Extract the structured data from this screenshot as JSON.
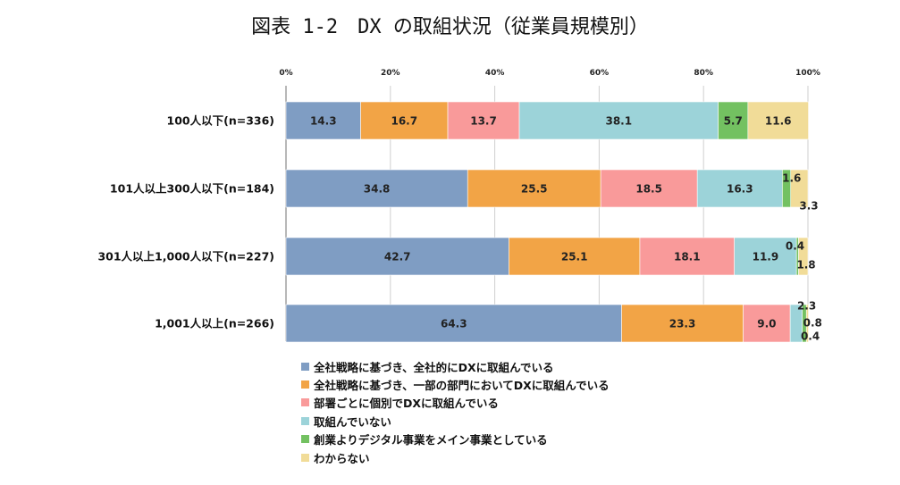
{
  "title": "図表 1-2　DX の取組状況（従業員規模別）",
  "chart_data": {
    "type": "bar",
    "orientation": "horizontal",
    "stacked": "percent",
    "x_ticks": [
      "0%",
      "20%",
      "40%",
      "60%",
      "80%",
      "100%"
    ],
    "xlim": [
      0,
      100
    ],
    "categories": [
      "100人以下(n=336)",
      "101人以上300人以下(n=184)",
      "301人以上1,000人以下(n=227)",
      "1,001人以上(n=266)"
    ],
    "series": [
      {
        "name": "全社戦略に基づき、全社的にDXに取組んでいる",
        "color": "#7f9dc3",
        "values": [
          14.3,
          34.8,
          42.7,
          64.3
        ],
        "labels": [
          "14.3",
          "34.8",
          "42.7",
          "64.3"
        ]
      },
      {
        "name": "全社戦略に基づき、一部の部門においてDXに取組んでいる",
        "color": "#f2a446",
        "values": [
          16.7,
          25.5,
          25.1,
          23.3
        ],
        "labels": [
          "16.7",
          "25.5",
          "25.1",
          "23.3"
        ]
      },
      {
        "name": "部署ごとに個別でDXに取組んでいる",
        "color": "#f99a9a",
        "values": [
          13.7,
          18.5,
          18.1,
          9.0
        ],
        "labels": [
          "13.7",
          "18.5",
          "18.1",
          "9.0"
        ]
      },
      {
        "name": "取組んでいない",
        "color": "#9cd3d9",
        "values": [
          38.1,
          16.3,
          11.9,
          2.3
        ],
        "labels": [
          "38.1",
          "16.3",
          "11.9",
          "2.3"
        ]
      },
      {
        "name": "創業よりデジタル事業をメイン事業としている",
        "color": "#73c161",
        "values": [
          5.7,
          1.6,
          0.4,
          0.8
        ],
        "labels": [
          "5.7",
          "1.6",
          "0.4",
          "0.8"
        ]
      },
      {
        "name": "わからない",
        "color": "#f1dc98",
        "values": [
          11.6,
          3.3,
          1.8,
          0.4
        ],
        "labels": [
          "11.6",
          "3.3",
          "1.8",
          "0.4"
        ]
      }
    ],
    "legend_position": "bottom"
  }
}
